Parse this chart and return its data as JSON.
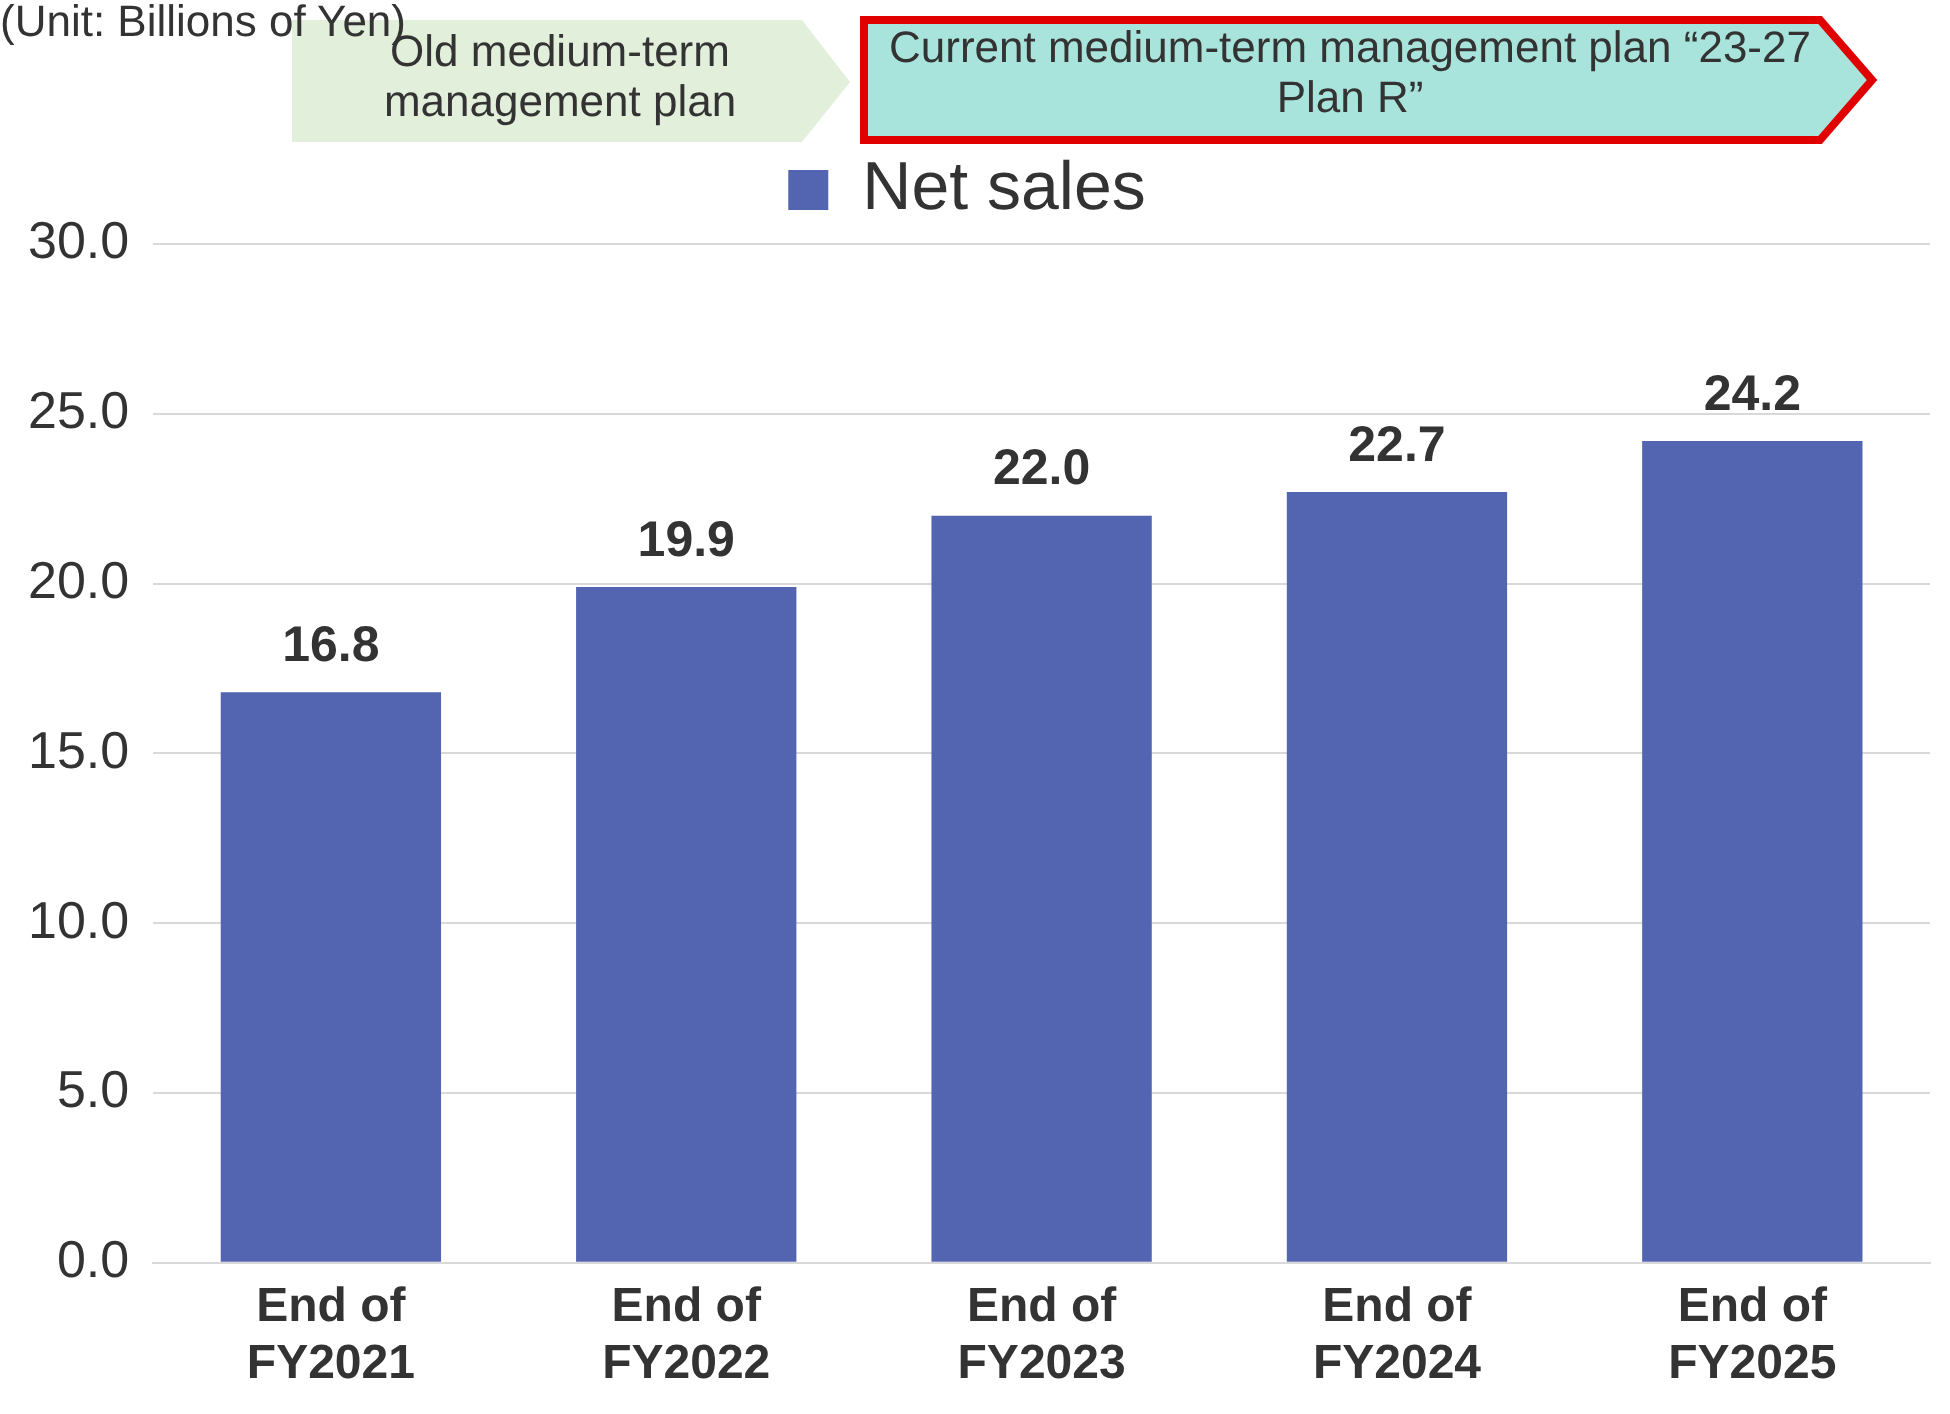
{
  "chart_data": {
    "type": "bar",
    "annotations": [
      "(Unit: Billions of Yen)",
      "Old medium-term management plan",
      "Current medium-term management plan “23-27 Plan R”"
    ],
    "categories": [
      "End of FY2021",
      "End of FY2022",
      "End of FY2023",
      "End of FY2024",
      "End of FY2025"
    ],
    "series": [
      {
        "name": "Net sales",
        "color": "#5364b0",
        "values": [
          16.8,
          19.9,
          22.0,
          22.7,
          24.2
        ],
        "value_labels": [
          "16.8",
          "19.9",
          "22.0",
          "22.7",
          "24.2"
        ]
      }
    ],
    "ylim": [
      0,
      30
    ],
    "yticks": [
      {
        "value": 0,
        "label": "0.0"
      },
      {
        "value": 5,
        "label": "5.0"
      },
      {
        "value": 10,
        "label": "10.0"
      },
      {
        "value": 15,
        "label": "15.0"
      },
      {
        "value": 20,
        "label": "20.0"
      },
      {
        "value": 25,
        "label": "25.0"
      },
      {
        "value": 30,
        "label": "30.0"
      }
    ],
    "grid": "y",
    "legend": "top"
  }
}
